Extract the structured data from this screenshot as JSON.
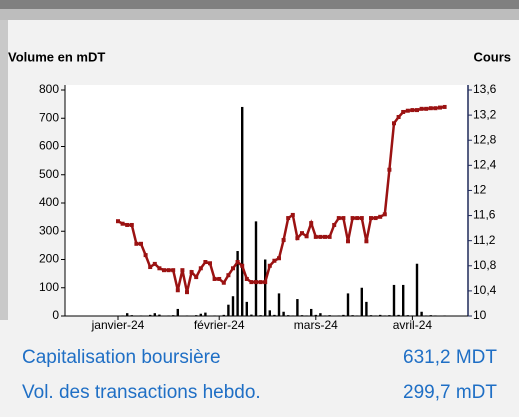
{
  "chart_data": {
    "type": "bar-line",
    "y_label": "Volume en mDT",
    "y2_label": "Cours",
    "categories": [
      "janvier-24",
      null,
      null,
      null,
      null,
      null,
      null,
      null,
      null,
      null,
      null,
      null,
      null,
      null,
      null,
      null,
      null,
      null,
      null,
      null,
      null,
      null,
      "février-24",
      null,
      null,
      null,
      null,
      null,
      null,
      null,
      null,
      null,
      null,
      null,
      null,
      null,
      null,
      null,
      null,
      null,
      null,
      null,
      null,
      "mars-24",
      null,
      null,
      null,
      null,
      null,
      null,
      null,
      null,
      null,
      null,
      null,
      null,
      null,
      null,
      null,
      null,
      null,
      null,
      null,
      null,
      "avril-24",
      null,
      null,
      null,
      null,
      null,
      null,
      null
    ],
    "series": [
      {
        "name": "Volume",
        "type": "bar",
        "color": "#000000",
        "values": [
          0,
          2,
          10,
          3,
          0,
          2,
          0,
          4,
          10,
          5,
          0,
          2,
          3,
          25,
          0,
          2,
          0,
          3,
          8,
          12,
          0,
          2,
          0,
          4,
          40,
          70,
          230,
          740,
          50,
          5,
          335,
          3,
          200,
          20,
          4,
          80,
          15,
          3,
          2,
          60,
          3,
          2,
          25,
          4,
          10,
          2,
          3,
          0,
          2,
          4,
          80,
          3,
          2,
          100,
          50,
          3,
          2,
          4,
          2,
          3,
          110,
          4,
          110,
          3,
          2,
          185,
          15,
          2,
          3,
          2,
          0,
          2
        ]
      },
      {
        "name": "Cours",
        "type": "line",
        "axis": "y2",
        "color": "#9b1212",
        "values": [
          11.51,
          11.47,
          11.45,
          11.45,
          11.15,
          11.15,
          10.97,
          10.78,
          10.83,
          10.76,
          10.73,
          10.73,
          10.73,
          10.41,
          10.73,
          10.38,
          10.7,
          10.62,
          10.76,
          10.86,
          10.84,
          10.59,
          10.59,
          10.53,
          10.65,
          10.76,
          10.86,
          10.8,
          10.59,
          10.54,
          10.54,
          10.54,
          10.54,
          10.8,
          10.88,
          10.92,
          11.21,
          11.56,
          11.61,
          11.24,
          11.32,
          11.27,
          11.48,
          11.26,
          11.26,
          11.26,
          11.26,
          11.45,
          11.56,
          11.56,
          11.19,
          11.56,
          11.56,
          11.56,
          11.19,
          11.56,
          11.56,
          11.58,
          11.62,
          12.33,
          13.07,
          13.17,
          13.25,
          13.27,
          13.28,
          13.28,
          13.3,
          13.3,
          13.31,
          13.31,
          13.32,
          13.33
        ]
      }
    ],
    "ylim": [
      0,
      800
    ],
    "yticks": [
      0,
      100,
      200,
      300,
      400,
      500,
      600,
      700,
      800
    ],
    "y2lim": [
      10,
      13.6
    ],
    "y2ticks": [
      10,
      {
        "value": 10.4,
        "label": "10,4"
      },
      {
        "value": 10.8,
        "label": "10,8"
      },
      {
        "value": 11.2,
        "label": "11,2"
      },
      {
        "value": 11.6,
        "label": "11,6"
      },
      12,
      {
        "value": 12.4,
        "label": "12,4"
      },
      {
        "value": 12.8,
        "label": "12,8"
      },
      {
        "value": 13.2,
        "label": "13,2"
      },
      {
        "value": 13.6,
        "label": "13,6"
      }
    ]
  },
  "summary": {
    "rows": [
      {
        "label": "Capitalisation boursière",
        "value": "631,2 MDT"
      },
      {
        "label": "Vol. des transactions hebdo.",
        "value": "299,7 mDT"
      }
    ]
  }
}
